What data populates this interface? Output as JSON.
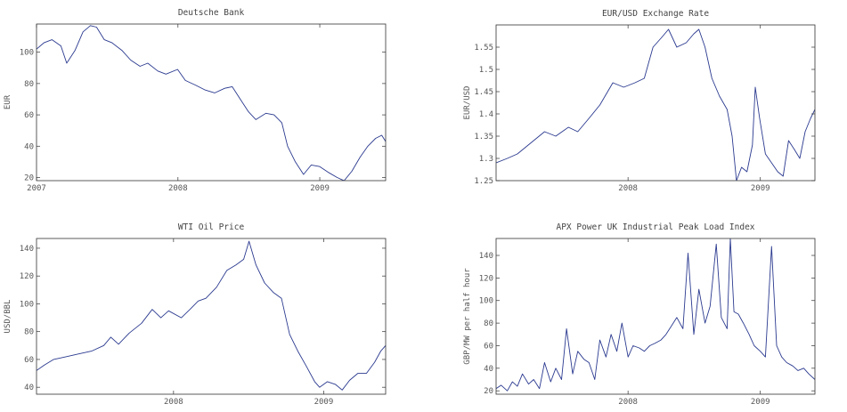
{
  "chart_data": [
    {
      "type": "line",
      "title": "Deutsche Bank",
      "xlabel": "",
      "ylabel": "EUR",
      "xlim": [
        "2007-01-01",
        "2009-06-20"
      ],
      "ylim": [
        18,
        118
      ],
      "xticks": [
        "2007-01-01",
        "2008-01-01",
        "2009-01-01"
      ],
      "xticklabels": [
        "2007",
        "2008",
        "2009"
      ],
      "yticks": [
        20,
        40,
        60,
        80,
        100
      ],
      "yticklabels": [
        "20",
        "40",
        "60",
        "80",
        "100"
      ],
      "series": [
        {
          "x": [
            "2007-01-01",
            "2007-01-20",
            "2007-02-10",
            "2007-03-05",
            "2007-03-20",
            "2007-04-10",
            "2007-05-01",
            "2007-05-20",
            "2007-06-05",
            "2007-06-25",
            "2007-07-15",
            "2007-08-10",
            "2007-09-01",
            "2007-09-25",
            "2007-10-15",
            "2007-11-10",
            "2007-12-01",
            "2007-12-31",
            "2008-01-20",
            "2008-02-15",
            "2008-03-10",
            "2008-04-05",
            "2008-05-01",
            "2008-05-20",
            "2008-06-10",
            "2008-07-01",
            "2008-07-20",
            "2008-08-15",
            "2008-09-05",
            "2008-09-25",
            "2008-10-10",
            "2008-10-30",
            "2008-11-20",
            "2008-12-10",
            "2009-01-01",
            "2009-01-25",
            "2009-02-15",
            "2009-03-05",
            "2009-03-25",
            "2009-04-15",
            "2009-05-05",
            "2009-05-25",
            "2009-06-10",
            "2009-06-20"
          ],
          "y": [
            102,
            106,
            108,
            104,
            93,
            101,
            113,
            117,
            116,
            108,
            106,
            101,
            95,
            91,
            93,
            88,
            86,
            89,
            82,
            79,
            76,
            74,
            77,
            78,
            70,
            62,
            57,
            61,
            60,
            55,
            40,
            30,
            22,
            28,
            27,
            23,
            20,
            18,
            24,
            33,
            40,
            45,
            47,
            43
          ]
        }
      ]
    },
    {
      "type": "line",
      "title": "EUR/USD Exchange Rate",
      "xlabel": "",
      "ylabel": "EUR/USD",
      "xlim": [
        "2007-01-01",
        "2009-06-01"
      ],
      "ylim": [
        1.25,
        1.6
      ],
      "xticks": [
        "2008-01-01",
        "2009-01-01"
      ],
      "xticklabels": [
        "2008",
        "2009"
      ],
      "yticks": [
        1.25,
        1.3,
        1.35,
        1.4,
        1.45,
        1.5,
        1.55
      ],
      "yticklabels": [
        "1.25",
        "1.3",
        "1.35",
        "1.4",
        "1.45",
        "1.5",
        "1.55"
      ],
      "series": [
        {
          "x": [
            "2007-01-01",
            "2007-02-01",
            "2007-03-01",
            "2007-04-15",
            "2007-05-15",
            "2007-06-15",
            "2007-07-20",
            "2007-08-15",
            "2007-09-15",
            "2007-10-15",
            "2007-11-20",
            "2007-12-20",
            "2008-01-20",
            "2008-02-15",
            "2008-03-10",
            "2008-04-01",
            "2008-04-22",
            "2008-05-15",
            "2008-06-10",
            "2008-07-01",
            "2008-07-15",
            "2008-08-01",
            "2008-08-20",
            "2008-09-10",
            "2008-10-01",
            "2008-10-15",
            "2008-10-27",
            "2008-11-10",
            "2008-11-25",
            "2008-12-10",
            "2008-12-18",
            "2008-12-30",
            "2009-01-15",
            "2009-02-01",
            "2009-02-18",
            "2009-03-05",
            "2009-03-20",
            "2009-04-05",
            "2009-04-20",
            "2009-05-05",
            "2009-05-20",
            "2009-06-01"
          ],
          "y": [
            1.29,
            1.3,
            1.31,
            1.34,
            1.36,
            1.35,
            1.37,
            1.36,
            1.39,
            1.42,
            1.47,
            1.46,
            1.47,
            1.48,
            1.55,
            1.57,
            1.59,
            1.55,
            1.56,
            1.58,
            1.59,
            1.55,
            1.48,
            1.44,
            1.41,
            1.35,
            1.25,
            1.28,
            1.27,
            1.33,
            1.46,
            1.39,
            1.31,
            1.29,
            1.27,
            1.26,
            1.34,
            1.32,
            1.3,
            1.36,
            1.39,
            1.41
          ]
        }
      ]
    },
    {
      "type": "line",
      "title": "WTI Oil Price",
      "xlabel": "",
      "ylabel": "USD/BBL",
      "xlim": [
        "2007-02-01",
        "2009-06-01"
      ],
      "ylim": [
        35,
        147
      ],
      "xticks": [
        "2008-01-01",
        "2009-01-01"
      ],
      "xticklabels": [
        "2008",
        "2009"
      ],
      "yticks": [
        40,
        60,
        80,
        100,
        120,
        140
      ],
      "yticklabels": [
        "40",
        "60",
        "80",
        "100",
        "120",
        "140"
      ],
      "series": [
        {
          "x": [
            "2007-02-01",
            "2007-02-20",
            "2007-03-15",
            "2007-04-15",
            "2007-05-15",
            "2007-06-15",
            "2007-07-15",
            "2007-08-01",
            "2007-08-20",
            "2007-09-15",
            "2007-10-15",
            "2007-11-10",
            "2007-12-01",
            "2007-12-20",
            "2008-01-20",
            "2008-02-10",
            "2008-03-01",
            "2008-03-20",
            "2008-04-15",
            "2008-05-10",
            "2008-06-01",
            "2008-06-20",
            "2008-07-03",
            "2008-07-20",
            "2008-08-10",
            "2008-09-01",
            "2008-09-20",
            "2008-10-10",
            "2008-10-30",
            "2008-11-20",
            "2008-12-10",
            "2008-12-22",
            "2009-01-10",
            "2009-01-30",
            "2009-02-15",
            "2009-03-05",
            "2009-03-25",
            "2009-04-15",
            "2009-05-05",
            "2009-05-20",
            "2009-06-01"
          ],
          "y": [
            52,
            56,
            60,
            62,
            64,
            66,
            70,
            76,
            71,
            79,
            86,
            96,
            90,
            95,
            90,
            96,
            102,
            104,
            112,
            124,
            128,
            132,
            145,
            128,
            115,
            108,
            104,
            78,
            66,
            55,
            44,
            40,
            44,
            42,
            38,
            45,
            50,
            50,
            58,
            66,
            70
          ]
        }
      ]
    },
    {
      "type": "line",
      "title": "APX Power UK Industrial Peak Load Index",
      "xlabel": "",
      "ylabel": "GBP/MW per half hour",
      "xlim": [
        "2007-01-01",
        "2009-06-01"
      ],
      "ylim": [
        17,
        155
      ],
      "xticks": [
        "2008-01-01",
        "2009-01-01"
      ],
      "xticklabels": [
        "2008",
        "2009"
      ],
      "yticks": [
        20,
        40,
        60,
        80,
        100,
        120,
        140
      ],
      "yticklabels": [
        "20",
        "40",
        "60",
        "80",
        "100",
        "120",
        "140"
      ],
      "series": [
        {
          "x": [
            "2007-01-01",
            "2007-01-15",
            "2007-02-01",
            "2007-02-15",
            "2007-03-01",
            "2007-03-15",
            "2007-04-01",
            "2007-04-15",
            "2007-05-01",
            "2007-05-15",
            "2007-06-01",
            "2007-06-15",
            "2007-07-01",
            "2007-07-15",
            "2007-08-01",
            "2007-08-15",
            "2007-09-01",
            "2007-09-15",
            "2007-10-01",
            "2007-10-15",
            "2007-11-01",
            "2007-11-15",
            "2007-12-01",
            "2007-12-15",
            "2008-01-01",
            "2008-01-15",
            "2008-02-01",
            "2008-02-15",
            "2008-03-01",
            "2008-03-15",
            "2008-04-01",
            "2008-04-15",
            "2008-05-01",
            "2008-05-15",
            "2008-06-01",
            "2008-06-15",
            "2008-07-01",
            "2008-07-15",
            "2008-08-01",
            "2008-08-15",
            "2008-09-01",
            "2008-09-15",
            "2008-10-01",
            "2008-10-10",
            "2008-10-20",
            "2008-11-01",
            "2008-11-15",
            "2008-12-01",
            "2008-12-15",
            "2009-01-01",
            "2009-01-15",
            "2009-02-01",
            "2009-02-15",
            "2009-03-01",
            "2009-03-15",
            "2009-04-01",
            "2009-04-15",
            "2009-05-01",
            "2009-05-15",
            "2009-06-01"
          ],
          "y": [
            22,
            25,
            20,
            28,
            24,
            35,
            26,
            30,
            22,
            45,
            28,
            40,
            30,
            75,
            35,
            55,
            48,
            45,
            30,
            65,
            50,
            70,
            55,
            80,
            50,
            60,
            58,
            55,
            60,
            62,
            65,
            70,
            78,
            85,
            75,
            142,
            70,
            110,
            80,
            95,
            150,
            85,
            75,
            155,
            90,
            88,
            80,
            70,
            60,
            55,
            50,
            148,
            60,
            50,
            45,
            42,
            38,
            40,
            35,
            30
          ]
        }
      ]
    }
  ]
}
